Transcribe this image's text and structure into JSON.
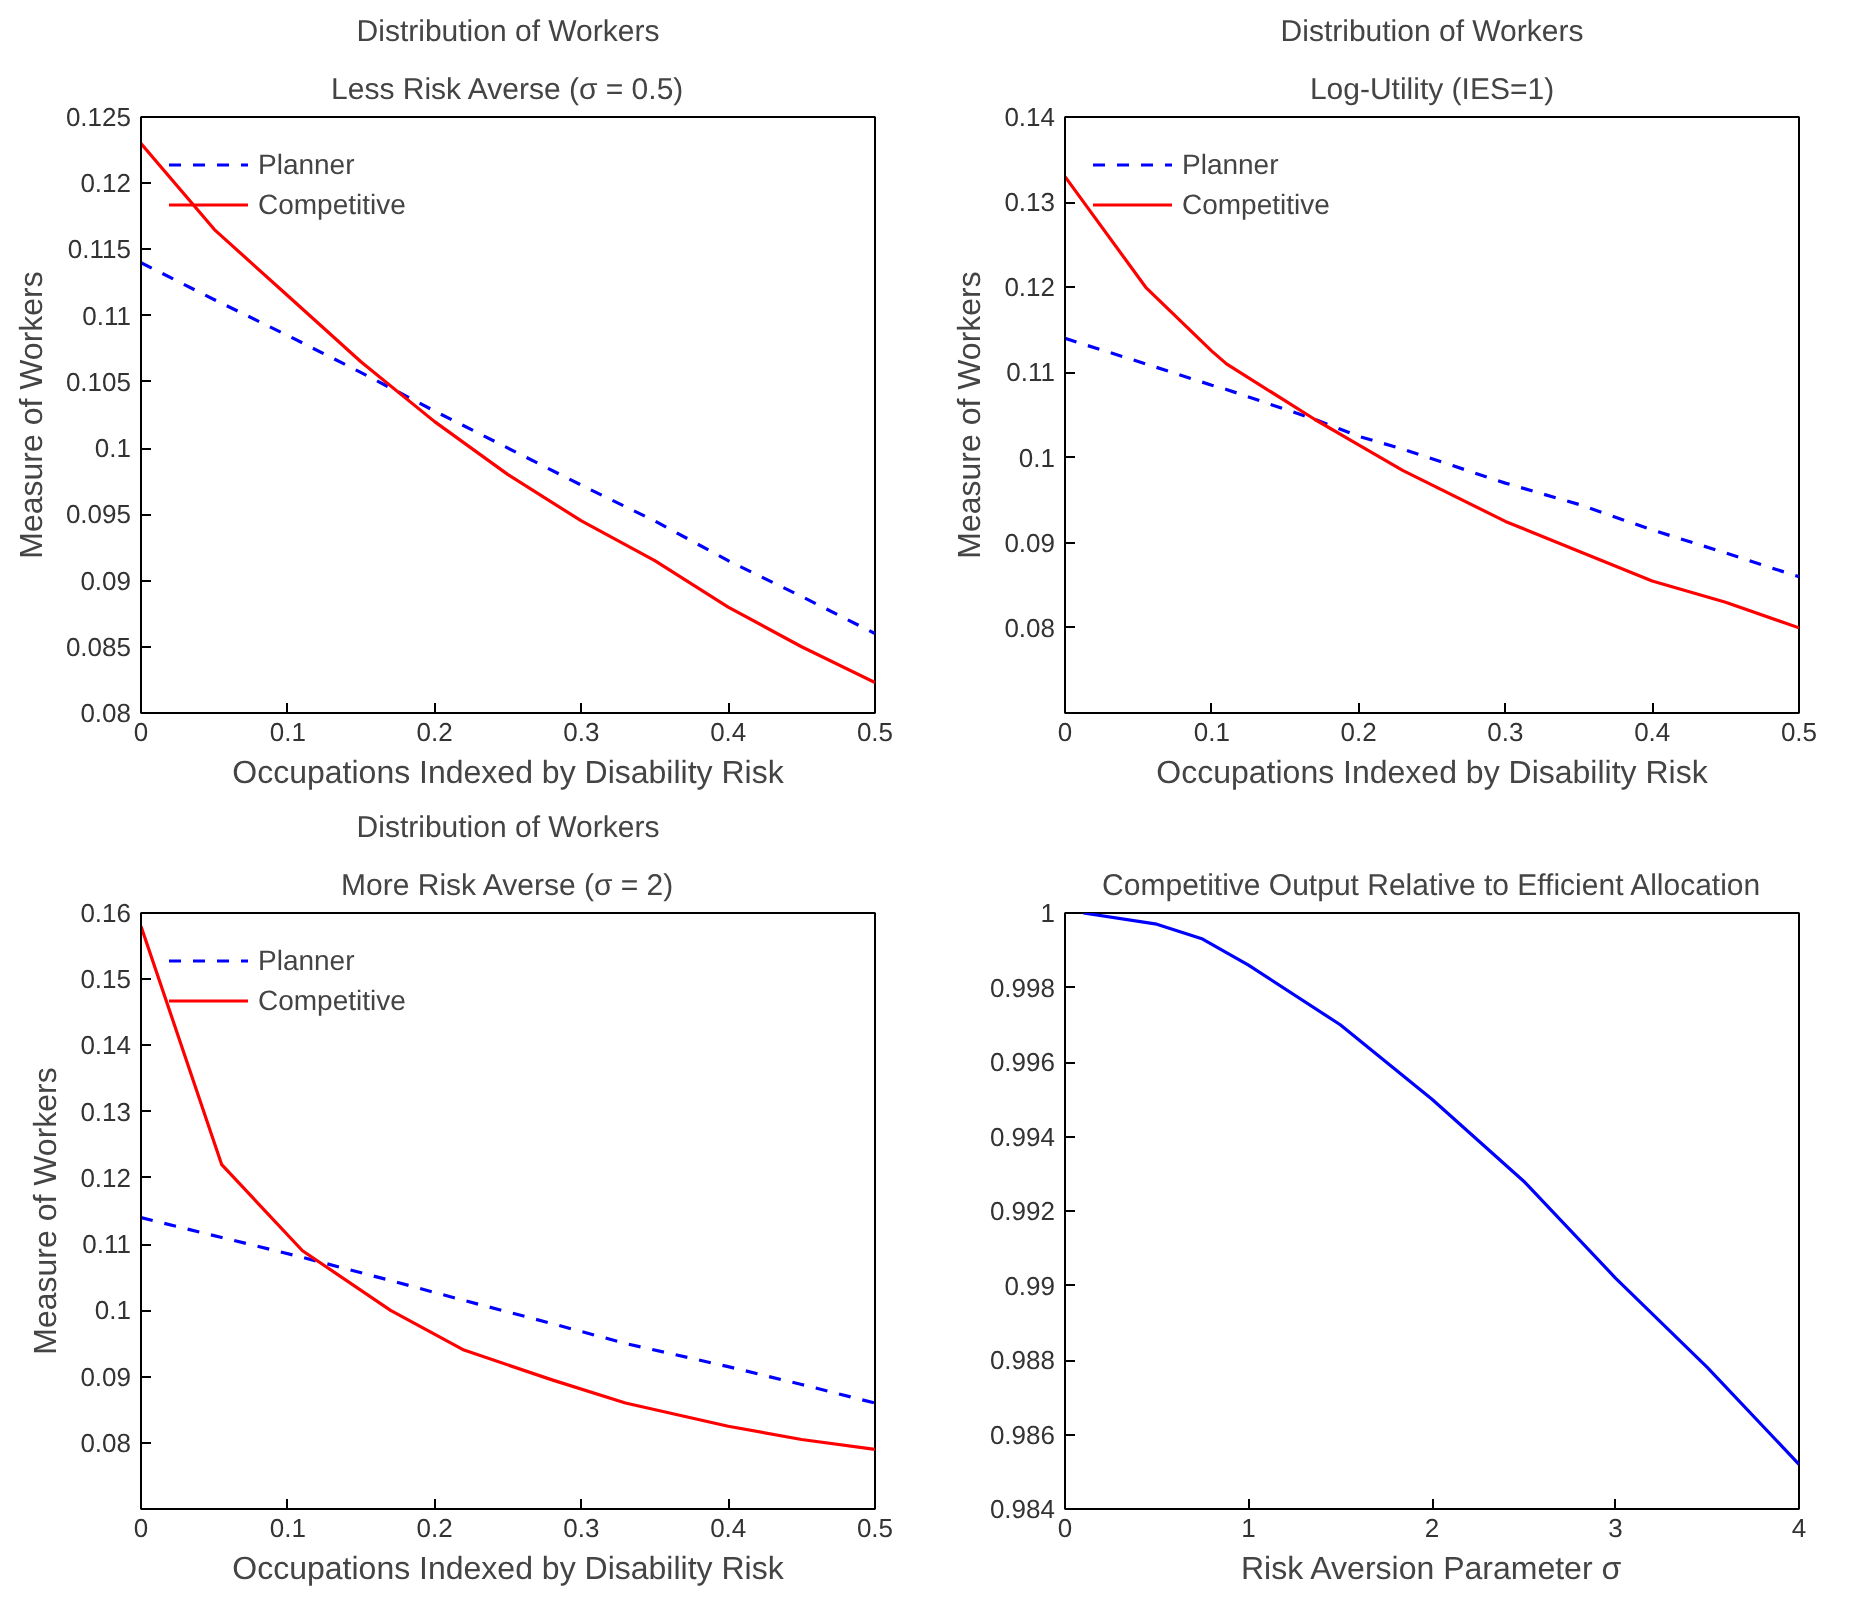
{
  "chart_data": [
    {
      "type": "line",
      "title": "Distribution of Workers",
      "subtitle": "Less Risk Averse (σ = 0.5)",
      "xlabel": "Occupations Indexed by Disability Risk",
      "ylabel": "Measure of Workers",
      "xlim": [
        0,
        0.5
      ],
      "ylim": [
        0.08,
        0.125
      ],
      "xticks": [
        0,
        0.1,
        0.2,
        0.3,
        0.4,
        0.5
      ],
      "yticks": [
        0.08,
        0.085,
        0.09,
        0.095,
        0.1,
        0.105,
        0.11,
        0.115,
        0.12,
        0.125
      ],
      "grid": false,
      "legend": "top left",
      "x": [
        0,
        0.05,
        0.1,
        0.15,
        0.2,
        0.25,
        0.3,
        0.35,
        0.4,
        0.45,
        0.5
      ],
      "series": [
        {
          "name": "Planner",
          "color": "#0000ff",
          "line_style": "dashed",
          "values": [
            0.114,
            0.1112,
            0.1085,
            0.1057,
            0.1028,
            0.1,
            0.0972,
            0.0945,
            0.0915,
            0.0888,
            0.086
          ]
        },
        {
          "name": "Competitive",
          "color": "#ff0000",
          "line_style": "solid",
          "values": [
            0.123,
            0.1165,
            0.1115,
            0.1065,
            0.102,
            0.098,
            0.0945,
            0.0915,
            0.088,
            0.085,
            0.0823
          ]
        }
      ]
    },
    {
      "type": "line",
      "title": "Distribution of Workers",
      "subtitle": "Log-Utility (IES=1)",
      "xlabel": "Occupations Indexed by Disability Risk",
      "ylabel": "Measure of Workers",
      "xlim": [
        0,
        0.5
      ],
      "ylim": [
        0.07,
        0.14
      ],
      "xticks": [
        0,
        0.1,
        0.2,
        0.3,
        0.4,
        0.5
      ],
      "yticks": [
        0.08,
        0.09,
        0.1,
        0.11,
        0.12,
        0.13,
        0.14
      ],
      "grid": false,
      "legend": "top left",
      "x": [
        0,
        0.055,
        0.1,
        0.11,
        0.17,
        0.2,
        0.23,
        0.3,
        0.35,
        0.4,
        0.45,
        0.5
      ],
      "series": [
        {
          "name": "Planner",
          "color": "#0000ff",
          "line_style": "dashed",
          "values": [
            0.114,
            0.111,
            0.1085,
            0.108,
            0.1045,
            0.1025,
            0.101,
            0.097,
            0.0945,
            0.0915,
            0.0888,
            0.086
          ]
        },
        {
          "name": "Competitive",
          "color": "#ff0000",
          "line_style": "solid",
          "values": [
            0.133,
            0.12,
            0.1125,
            0.111,
            0.1045,
            0.1015,
            0.0985,
            0.0925,
            0.089,
            0.0855,
            0.083,
            0.08
          ]
        }
      ]
    },
    {
      "type": "line",
      "title": "Distribution of Workers",
      "subtitle": "More Risk Averse (σ = 2)",
      "xlabel": "Occupations Indexed by Disability Risk",
      "ylabel": "Measure of Workers",
      "xlim": [
        0,
        0.5
      ],
      "ylim": [
        0.07,
        0.16
      ],
      "xticks": [
        0,
        0.1,
        0.2,
        0.3,
        0.4,
        0.5
      ],
      "yticks": [
        0.08,
        0.09,
        0.1,
        0.11,
        0.12,
        0.13,
        0.14,
        0.15,
        0.16
      ],
      "grid": false,
      "legend": "top left",
      "x": [
        0,
        0.055,
        0.11,
        0.17,
        0.22,
        0.28,
        0.33,
        0.4,
        0.45,
        0.5
      ],
      "series": [
        {
          "name": "Planner",
          "color": "#0000ff",
          "line_style": "dashed",
          "values": [
            0.114,
            0.111,
            0.108,
            0.1045,
            0.1015,
            0.098,
            0.095,
            0.0915,
            0.0888,
            0.086
          ]
        },
        {
          "name": "Competitive",
          "color": "#ff0000",
          "line_style": "solid",
          "values": [
            0.158,
            0.122,
            0.109,
            0.1,
            0.094,
            0.0895,
            0.086,
            0.0825,
            0.0805,
            0.079
          ]
        }
      ]
    },
    {
      "type": "line",
      "title": "Competitive Output Relative to Efficient Allocation",
      "xlabel": "Risk Aversion Parameter σ",
      "xlim": [
        0,
        4
      ],
      "ylim": [
        0.984,
        1
      ],
      "xticks": [
        0,
        1,
        2,
        3,
        4
      ],
      "yticks": [
        0.984,
        0.986,
        0.988,
        0.99,
        0.992,
        0.994,
        0.996,
        0.998,
        1
      ],
      "grid": false,
      "x": [
        0.1,
        0.5,
        0.75,
        1,
        1.5,
        2,
        2.5,
        3,
        3.5,
        4
      ],
      "series": [
        {
          "color": "#0000ff",
          "line_style": "solid",
          "values": [
            1.0,
            0.9997,
            0.9993,
            0.9986,
            0.997,
            0.995,
            0.9928,
            0.9902,
            0.9878,
            0.9852
          ]
        }
      ]
    }
  ]
}
